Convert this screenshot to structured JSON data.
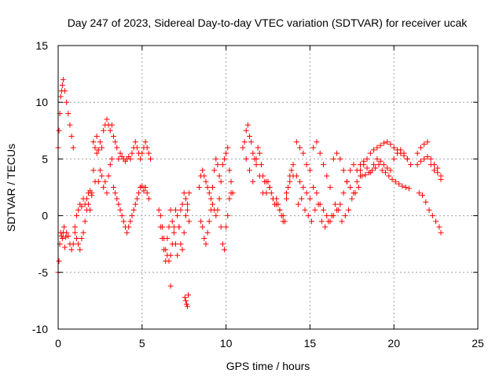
{
  "chart_data": {
    "type": "scatter",
    "title": "Day 247 of 2023, Sidereal Day-to-day VTEC variation (SDTVAR) for receiver ucak",
    "xlabel": "GPS time / hours",
    "ylabel": "SDTVAR / TECUs",
    "xlim": [
      0,
      25
    ],
    "ylim": [
      -10,
      15
    ],
    "xticks": [
      0,
      5,
      10,
      15,
      20,
      25
    ],
    "yticks": [
      -10,
      -5,
      0,
      5,
      10,
      15
    ],
    "xtick_labels": [
      "0",
      "5",
      "10",
      "15",
      "20",
      "25"
    ],
    "ytick_labels": [
      "-10",
      "-5",
      "0",
      "5",
      "10",
      "15"
    ],
    "grid": true,
    "marker": "+",
    "color": "#ff0000",
    "series": [
      {
        "name": "SDTVAR",
        "x": [
          0.0,
          0.05,
          0.1,
          0.15,
          0.2,
          0.25,
          0.3,
          0.35,
          0.4,
          0.45,
          0.5,
          0.6,
          0.7,
          0.8,
          0.9,
          1.0,
          1.1,
          1.2,
          1.3,
          1.4,
          1.5,
          1.6,
          1.7,
          1.8,
          1.9,
          2.0,
          2.1,
          2.2,
          2.3,
          2.4,
          2.5,
          2.6,
          2.7,
          2.8,
          2.9,
          3.0,
          3.1,
          3.2,
          3.3,
          3.4,
          3.5,
          3.6,
          3.7,
          3.8,
          3.9,
          4.0,
          4.1,
          4.2,
          4.3,
          4.4,
          4.5,
          4.6,
          4.7,
          4.8,
          4.9,
          5.0,
          5.1,
          5.2,
          5.3,
          5.4,
          5.5,
          0.0,
          0.05,
          0.1,
          0.15,
          0.2,
          0.25,
          0.3,
          0.4,
          0.5,
          0.6,
          0.7,
          0.8,
          0.9,
          1.0,
          1.1,
          1.2,
          1.3,
          1.4,
          1.5,
          1.6,
          1.7,
          1.8,
          1.9,
          2.0,
          2.1,
          2.2,
          2.3,
          2.4,
          2.5,
          2.6,
          2.7,
          2.8,
          2.9,
          3.0,
          3.1,
          3.2,
          3.3,
          3.4,
          3.5,
          3.6,
          3.7,
          3.8,
          3.9,
          4.0,
          4.1,
          4.2,
          4.3,
          4.4,
          4.5,
          4.6,
          4.7,
          4.8,
          4.9,
          5.0,
          5.1,
          5.2,
          5.3,
          5.4,
          6.0,
          6.1,
          6.2,
          6.3,
          6.4,
          6.5,
          6.6,
          6.7,
          6.8,
          6.9,
          7.0,
          7.1,
          7.2,
          7.3,
          7.4,
          7.5,
          7.6,
          7.7,
          7.8,
          6.1,
          6.2,
          6.3,
          6.4,
          6.5,
          6.6,
          6.7,
          6.8,
          6.9,
          7.0,
          7.1,
          7.2,
          7.3,
          7.4,
          7.5,
          7.6,
          7.7,
          7.8,
          6.7,
          7.55,
          7.6,
          7.65,
          7.7,
          7.75,
          8.4,
          8.5,
          8.6,
          8.7,
          8.8,
          8.9,
          9.0,
          9.1,
          9.2,
          9.3,
          9.4,
          9.5,
          9.6,
          9.7,
          9.8,
          9.9,
          10.0,
          10.1,
          10.2,
          10.3,
          10.4,
          8.5,
          8.6,
          8.7,
          8.8,
          8.9,
          9.0,
          9.1,
          9.2,
          9.3,
          9.4,
          9.5,
          9.6,
          9.7,
          9.8,
          9.9,
          10.0,
          10.1,
          10.2,
          10.3,
          11.0,
          11.1,
          11.2,
          11.3,
          11.4,
          11.5,
          11.6,
          11.7,
          11.8,
          11.9,
          12.0,
          12.1,
          12.2,
          12.3,
          12.4,
          12.5,
          12.6,
          12.7,
          12.8,
          12.9,
          13.0,
          13.1,
          13.2,
          13.3,
          13.4,
          13.5,
          13.6,
          13.7,
          13.8,
          13.9,
          14.0,
          11.2,
          11.4,
          11.6,
          11.8,
          12.0,
          12.2,
          12.4,
          12.6,
          12.8,
          13.0,
          13.2,
          13.4,
          13.6,
          13.8,
          14.0,
          14.2,
          14.4,
          14.6,
          14.8,
          15.0,
          15.2,
          15.4,
          15.6,
          15.8,
          16.0,
          16.2,
          16.4,
          16.6,
          16.8,
          17.0,
          17.2,
          17.4,
          17.6,
          17.8,
          18.0,
          14.2,
          14.4,
          14.6,
          14.8,
          15.0,
          15.2,
          15.4,
          15.6,
          15.8,
          16.0,
          16.2,
          16.4,
          16.6,
          16.8,
          17.0,
          17.2,
          17.4,
          17.6,
          17.8,
          18.0,
          14.3,
          14.5,
          14.7,
          14.9,
          15.1,
          15.3,
          15.5,
          15.7,
          15.9,
          16.1,
          16.3,
          16.5,
          16.7,
          16.9,
          17.1,
          17.3,
          17.5,
          17.7,
          17.9,
          18.0,
          18.2,
          18.4,
          18.6,
          18.8,
          19.0,
          19.2,
          19.4,
          19.6,
          19.8,
          20.0,
          20.2,
          20.4,
          20.6,
          20.8,
          21.0,
          18.0,
          18.2,
          18.4,
          18.6,
          18.8,
          19.0,
          19.2,
          19.4,
          19.6,
          19.8,
          20.0,
          20.2,
          20.4,
          20.6,
          20.8,
          18.1,
          18.3,
          18.5,
          18.7,
          18.9,
          19.1,
          19.3,
          19.5,
          19.7,
          19.9,
          20.1,
          20.3,
          20.5,
          20.7,
          20.9,
          21.4,
          21.6,
          21.8,
          22.0,
          22.2,
          22.4,
          22.6,
          22.8,
          21.4,
          21.6,
          21.8,
          22.0,
          22.2,
          22.4,
          22.6,
          22.8,
          21.5,
          21.7,
          21.9,
          22.1,
          22.3,
          22.5,
          22.7,
          22.8
        ],
        "y": [
          -5.0,
          -4.0,
          -2.5,
          -1.5,
          -1.8,
          -2.0,
          -1.5,
          -1.0,
          -2.8,
          -1.9,
          -1.5,
          -1.8,
          -2.5,
          -3.0,
          -2.5,
          -1.0,
          0.0,
          0.5,
          1.0,
          0.8,
          1.5,
          1.0,
          1.5,
          2.0,
          2.2,
          1.8,
          6.5,
          6.0,
          7.0,
          5.8,
          6.5,
          6.0,
          7.5,
          8.0,
          8.5,
          8.0,
          7.5,
          8.0,
          7.0,
          6.5,
          6.0,
          5.0,
          5.5,
          5.2,
          5.0,
          4.8,
          5.0,
          5.2,
          5.0,
          5.5,
          6.0,
          6.5,
          6.0,
          5.5,
          5.0,
          5.5,
          6.0,
          6.5,
          6.0,
          5.5,
          5.0,
          6.0,
          7.5,
          9.0,
          10.5,
          11.0,
          11.5,
          12.0,
          11.0,
          10.0,
          9.0,
          8.0,
          7.0,
          6.0,
          -1.5,
          -2.0,
          -2.5,
          -3.0,
          -2.0,
          -1.5,
          -0.5,
          0.5,
          1.0,
          0.5,
          2.0,
          4.0,
          3.0,
          5.5,
          3.0,
          4.0,
          3.5,
          2.5,
          3.0,
          2.0,
          3.5,
          4.5,
          5.0,
          2.5,
          2.0,
          1.5,
          1.0,
          0.5,
          0.0,
          -0.5,
          -1.0,
          -1.5,
          -1.0,
          -0.5,
          0.0,
          0.5,
          1.0,
          1.5,
          2.0,
          2.5,
          2.6,
          2.2,
          2.5,
          2.0,
          1.5,
          0.5,
          0.0,
          -1.0,
          -2.0,
          -3.0,
          -3.5,
          -4.0,
          -3.5,
          -2.5,
          -1.0,
          0.5,
          0.0,
          -1.0,
          -2.5,
          -3.0,
          -1.5,
          0.0,
          1.0,
          2.0,
          -1.0,
          -2.0,
          -3.0,
          -4.0,
          -2.0,
          -1.0,
          0.5,
          -0.5,
          -1.5,
          -2.5,
          -3.5,
          -1.0,
          0.5,
          1.0,
          2.0,
          1.5,
          0.5,
          -0.5,
          -6.2,
          -7.2,
          -7.5,
          -7.8,
          -8.0,
          -7.0,
          2.5,
          3.5,
          4.0,
          3.5,
          3.0,
          2.5,
          2.0,
          1.5,
          1.0,
          0.5,
          0.0,
          0.5,
          1.5,
          3.0,
          4.5,
          5.0,
          5.5,
          6.0,
          4.0,
          3.0,
          2.0,
          -0.5,
          -1.0,
          -2.0,
          -2.5,
          -1.5,
          -0.5,
          0.5,
          2.5,
          4.0,
          5.0,
          4.5,
          3.5,
          -1.0,
          -2.5,
          -3.0,
          -1.0,
          0.0,
          1.5,
          2.0,
          6.0,
          6.5,
          7.5,
          8.0,
          7.0,
          6.5,
          5.5,
          5.0,
          5.0,
          6.0,
          5.5,
          4.5,
          3.5,
          3.0,
          2.0,
          3.0,
          2.5,
          2.0,
          1.5,
          1.0,
          1.5,
          1.0,
          0.5,
          0.0,
          -0.5,
          -0.5,
          1.5,
          2.5,
          3.5,
          4.0,
          4.5,
          5.0,
          4.0,
          3.0,
          4.5,
          3.5,
          2.0,
          3.0,
          2.5,
          1.5,
          1.0,
          0.5,
          0.0,
          2.0,
          3.0,
          3.5,
          6.5,
          6.0,
          5.5,
          4.5,
          4.0,
          6.0,
          6.5,
          5.5,
          4.5,
          3.5,
          2.5,
          5.0,
          5.5,
          5.0,
          4.0,
          3.0,
          4.0,
          4.5,
          4.0,
          3.5,
          3.5,
          3.0,
          2.5,
          2.0,
          1.5,
          2.5,
          2.0,
          1.0,
          0.5,
          0.0,
          -0.5,
          0.0,
          0.5,
          1.0,
          2.0,
          3.0,
          2.5,
          2.0,
          3.0,
          3.5,
          1.0,
          1.5,
          0.5,
          0.0,
          -0.5,
          0.5,
          1.0,
          -0.5,
          -1.0,
          -0.5,
          0.0,
          1.0,
          0.5,
          -0.5,
          0.0,
          0.5,
          1.5,
          2.0,
          2.5,
          4.0,
          4.5,
          4.2,
          3.8,
          4.5,
          5.0,
          4.8,
          4.5,
          4.2,
          4.0,
          5.0,
          5.5,
          5.8,
          5.5,
          5.0,
          4.5,
          4.5,
          4.8,
          5.0,
          5.5,
          5.8,
          6.0,
          6.2,
          6.4,
          6.5,
          6.3,
          6.0,
          5.8,
          5.5,
          5.3,
          5.0,
          3.5,
          3.6,
          3.8,
          4.0,
          4.2,
          4.5,
          4.0,
          3.8,
          3.5,
          3.2,
          3.0,
          2.8,
          2.6,
          2.5,
          2.4,
          5.5,
          6.0,
          6.3,
          6.5,
          5.0,
          4.5,
          4.2,
          3.5,
          4.5,
          4.8,
          5.0,
          5.2,
          4.5,
          4.0,
          3.8,
          3.2,
          2.0,
          1.8,
          1.2,
          0.5,
          0.0,
          -0.5,
          -1.0,
          -1.5
        ]
      }
    ]
  }
}
